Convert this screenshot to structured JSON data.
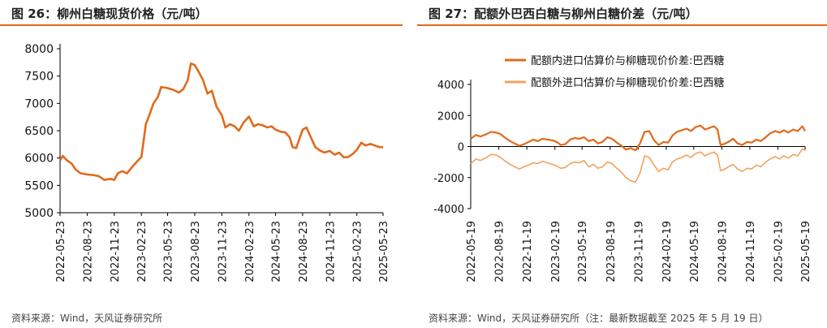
{
  "colors": {
    "accent": "#e06a1b",
    "line_dark": "#e06a1b",
    "line_light": "#f2a25e"
  },
  "left": {
    "title": "图 26：柳州白糖现货价格（元/吨）",
    "source": "资料来源：Wind，天风证券研究所"
  },
  "right": {
    "title": "图 27：配额外巴西白糖与柳州白糖价差（元/吨）",
    "source": "资料来源：Wind，天风证券研究所（注：最新数据截至 2025 年 5 月 19 日）"
  },
  "chart_data": [
    {
      "type": "line",
      "title": "柳州白糖现货价格（元/吨）",
      "x_ticks": [
        "2022-05-23",
        "2022-08-23",
        "2022-11-23",
        "2023-02-23",
        "2023-05-23",
        "2023-08-23",
        "2023-11-23",
        "2024-02-23",
        "2024-05-23",
        "2024-08-23",
        "2024-11-23",
        "2025-02-23",
        "2025-05-23"
      ],
      "ylim": [
        5000,
        8000
      ],
      "y_ticks": [
        5000,
        5500,
        6000,
        6500,
        7000,
        7500,
        8000
      ],
      "grid": false,
      "series": [
        {
          "color": "#e06a1b",
          "points": [
            [
              "2022-05-23",
              5960
            ],
            [
              "2022-06-01",
              6040
            ],
            [
              "2022-06-15",
              5960
            ],
            [
              "2022-07-01",
              5900
            ],
            [
              "2022-07-15",
              5790
            ],
            [
              "2022-08-01",
              5720
            ],
            [
              "2022-08-23",
              5700
            ],
            [
              "2022-09-10",
              5690
            ],
            [
              "2022-10-01",
              5670
            ],
            [
              "2022-10-20",
              5600
            ],
            [
              "2022-11-10",
              5620
            ],
            [
              "2022-11-23",
              5600
            ],
            [
              "2022-12-05",
              5720
            ],
            [
              "2022-12-20",
              5760
            ],
            [
              "2023-01-05",
              5720
            ],
            [
              "2023-01-20",
              5820
            ],
            [
              "2023-02-05",
              5920
            ],
            [
              "2023-02-23",
              6020
            ],
            [
              "2023-03-01",
              6250
            ],
            [
              "2023-03-10",
              6620
            ],
            [
              "2023-03-25",
              6830
            ],
            [
              "2023-04-05",
              7000
            ],
            [
              "2023-04-20",
              7120
            ],
            [
              "2023-05-01",
              7300
            ],
            [
              "2023-05-23",
              7280
            ],
            [
              "2023-06-10",
              7250
            ],
            [
              "2023-06-30",
              7200
            ],
            [
              "2023-07-15",
              7260
            ],
            [
              "2023-07-30",
              7420
            ],
            [
              "2023-08-10",
              7730
            ],
            [
              "2023-08-23",
              7700
            ],
            [
              "2023-09-05",
              7580
            ],
            [
              "2023-09-20",
              7430
            ],
            [
              "2023-10-05",
              7180
            ],
            [
              "2023-10-20",
              7230
            ],
            [
              "2023-11-05",
              6940
            ],
            [
              "2023-11-23",
              6780
            ],
            [
              "2023-12-05",
              6560
            ],
            [
              "2023-12-20",
              6620
            ],
            [
              "2024-01-05",
              6580
            ],
            [
              "2024-01-20",
              6500
            ],
            [
              "2024-02-05",
              6650
            ],
            [
              "2024-02-23",
              6760
            ],
            [
              "2024-03-10",
              6580
            ],
            [
              "2024-03-25",
              6620
            ],
            [
              "2024-04-10",
              6600
            ],
            [
              "2024-04-25",
              6560
            ],
            [
              "2024-05-10",
              6580
            ],
            [
              "2024-05-23",
              6520
            ],
            [
              "2024-06-10",
              6480
            ],
            [
              "2024-06-25",
              6470
            ],
            [
              "2024-07-10",
              6380
            ],
            [
              "2024-07-20",
              6200
            ],
            [
              "2024-08-01",
              6180
            ],
            [
              "2024-08-23",
              6520
            ],
            [
              "2024-09-05",
              6560
            ],
            [
              "2024-09-20",
              6380
            ],
            [
              "2024-10-05",
              6200
            ],
            [
              "2024-10-20",
              6140
            ],
            [
              "2024-11-05",
              6100
            ],
            [
              "2024-11-23",
              6130
            ],
            [
              "2024-12-10",
              6060
            ],
            [
              "2024-12-25",
              6100
            ],
            [
              "2025-01-10",
              6010
            ],
            [
              "2025-01-25",
              6020
            ],
            [
              "2025-02-10",
              6080
            ],
            [
              "2025-02-23",
              6150
            ],
            [
              "2025-03-10",
              6280
            ],
            [
              "2025-03-25",
              6230
            ],
            [
              "2025-04-10",
              6260
            ],
            [
              "2025-04-25",
              6230
            ],
            [
              "2025-05-10",
              6200
            ],
            [
              "2025-05-23",
              6200
            ]
          ]
        }
      ]
    },
    {
      "type": "line",
      "title": "配额外巴西白糖与柳州白糖价差（元/吨）",
      "x_ticks": [
        "2022-05-19",
        "2022-08-19",
        "2022-11-19",
        "2023-02-19",
        "2023-05-19",
        "2023-08-19",
        "2023-11-19",
        "2024-02-19",
        "2024-05-19",
        "2024-08-19",
        "2024-11-19",
        "2025-02-19",
        "2025-05-19"
      ],
      "ylim": [
        -4000,
        4000
      ],
      "y_ticks": [
        -4000,
        -2000,
        0,
        2000,
        4000
      ],
      "legend": "top-center",
      "grid": false,
      "series": [
        {
          "name": "配额内进口估算价与柳糖现价价差:巴西糖",
          "color": "#e06a1b",
          "points": [
            [
              "2022-05-19",
              500
            ],
            [
              "2022-06-05",
              750
            ],
            [
              "2022-06-20",
              650
            ],
            [
              "2022-07-10",
              800
            ],
            [
              "2022-07-25",
              950
            ],
            [
              "2022-08-10",
              900
            ],
            [
              "2022-08-25",
              800
            ],
            [
              "2022-09-10",
              550
            ],
            [
              "2022-09-25",
              350
            ],
            [
              "2022-10-10",
              200
            ],
            [
              "2022-10-25",
              50
            ],
            [
              "2022-11-10",
              150
            ],
            [
              "2022-11-25",
              300
            ],
            [
              "2022-12-10",
              450
            ],
            [
              "2022-12-25",
              350
            ],
            [
              "2023-01-10",
              500
            ],
            [
              "2023-01-25",
              450
            ],
            [
              "2023-02-10",
              400
            ],
            [
              "2023-02-25",
              300
            ],
            [
              "2023-03-10",
              100
            ],
            [
              "2023-03-25",
              150
            ],
            [
              "2023-04-10",
              450
            ],
            [
              "2023-04-25",
              550
            ],
            [
              "2023-05-10",
              500
            ],
            [
              "2023-05-25",
              600
            ],
            [
              "2023-06-10",
              350
            ],
            [
              "2023-06-25",
              450
            ],
            [
              "2023-07-10",
              200
            ],
            [
              "2023-07-25",
              300
            ],
            [
              "2023-08-10",
              600
            ],
            [
              "2023-08-25",
              500
            ],
            [
              "2023-09-10",
              250
            ],
            [
              "2023-09-25",
              50
            ],
            [
              "2023-10-10",
              -200
            ],
            [
              "2023-10-25",
              -100
            ],
            [
              "2023-11-10",
              -250
            ],
            [
              "2023-11-25",
              200
            ],
            [
              "2023-12-10",
              950
            ],
            [
              "2023-12-25",
              1000
            ],
            [
              "2024-01-10",
              400
            ],
            [
              "2024-01-25",
              100
            ],
            [
              "2024-02-10",
              300
            ],
            [
              "2024-02-25",
              250
            ],
            [
              "2024-03-10",
              700
            ],
            [
              "2024-03-25",
              950
            ],
            [
              "2024-04-10",
              1050
            ],
            [
              "2024-04-25",
              1150
            ],
            [
              "2024-05-10",
              1000
            ],
            [
              "2024-05-25",
              1250
            ],
            [
              "2024-06-10",
              1350
            ],
            [
              "2024-06-25",
              1100
            ],
            [
              "2024-07-10",
              1200
            ],
            [
              "2024-07-25",
              1300
            ],
            [
              "2024-08-05",
              1100
            ],
            [
              "2024-08-15",
              100
            ],
            [
              "2024-08-25",
              150
            ],
            [
              "2024-09-10",
              300
            ],
            [
              "2024-09-25",
              500
            ],
            [
              "2024-10-10",
              200
            ],
            [
              "2024-10-25",
              100
            ],
            [
              "2024-11-10",
              300
            ],
            [
              "2024-11-25",
              250
            ],
            [
              "2024-12-10",
              450
            ],
            [
              "2024-12-25",
              350
            ],
            [
              "2025-01-10",
              600
            ],
            [
              "2025-01-25",
              850
            ],
            [
              "2025-02-10",
              1000
            ],
            [
              "2025-02-25",
              900
            ],
            [
              "2025-03-10",
              1050
            ],
            [
              "2025-03-25",
              900
            ],
            [
              "2025-04-10",
              1100
            ],
            [
              "2025-04-25",
              1000
            ],
            [
              "2025-05-10",
              1300
            ],
            [
              "2025-05-19",
              1000
            ]
          ]
        },
        {
          "name": "配额外进口估算价与柳糖现价价差:巴西糖",
          "color": "#f2a25e",
          "points": [
            [
              "2022-05-19",
              -1100
            ],
            [
              "2022-06-05",
              -800
            ],
            [
              "2022-06-20",
              -900
            ],
            [
              "2022-07-10",
              -700
            ],
            [
              "2022-07-25",
              -500
            ],
            [
              "2022-08-10",
              -550
            ],
            [
              "2022-08-25",
              -700
            ],
            [
              "2022-09-10",
              -950
            ],
            [
              "2022-09-25",
              -1150
            ],
            [
              "2022-10-10",
              -1300
            ],
            [
              "2022-10-25",
              -1450
            ],
            [
              "2022-11-10",
              -1300
            ],
            [
              "2022-11-25",
              -1200
            ],
            [
              "2022-12-10",
              -1050
            ],
            [
              "2022-12-25",
              -1100
            ],
            [
              "2023-01-10",
              -950
            ],
            [
              "2023-01-25",
              -1050
            ],
            [
              "2023-02-10",
              -1150
            ],
            [
              "2023-02-25",
              -1250
            ],
            [
              "2023-03-10",
              -1400
            ],
            [
              "2023-03-25",
              -1350
            ],
            [
              "2023-04-10",
              -1100
            ],
            [
              "2023-04-25",
              -1000
            ],
            [
              "2023-05-10",
              -1050
            ],
            [
              "2023-05-25",
              -900
            ],
            [
              "2023-06-10",
              -1300
            ],
            [
              "2023-06-25",
              -1150
            ],
            [
              "2023-07-10",
              -1400
            ],
            [
              "2023-07-25",
              -1300
            ],
            [
              "2023-08-10",
              -1000
            ],
            [
              "2023-08-25",
              -1100
            ],
            [
              "2023-09-10",
              -1400
            ],
            [
              "2023-09-25",
              -1650
            ],
            [
              "2023-10-10",
              -2000
            ],
            [
              "2023-10-25",
              -2200
            ],
            [
              "2023-11-10",
              -2300
            ],
            [
              "2023-11-25",
              -1700
            ],
            [
              "2023-12-10",
              -600
            ],
            [
              "2023-12-25",
              -700
            ],
            [
              "2024-01-10",
              -1200
            ],
            [
              "2024-01-25",
              -1600
            ],
            [
              "2024-02-10",
              -1400
            ],
            [
              "2024-02-25",
              -1500
            ],
            [
              "2024-03-10",
              -1000
            ],
            [
              "2024-03-25",
              -800
            ],
            [
              "2024-04-10",
              -700
            ],
            [
              "2024-04-25",
              -550
            ],
            [
              "2024-05-10",
              -700
            ],
            [
              "2024-05-25",
              -450
            ],
            [
              "2024-06-10",
              -350
            ],
            [
              "2024-06-25",
              -600
            ],
            [
              "2024-07-10",
              -450
            ],
            [
              "2024-07-25",
              -350
            ],
            [
              "2024-08-05",
              -550
            ],
            [
              "2024-08-15",
              -1550
            ],
            [
              "2024-08-25",
              -1500
            ],
            [
              "2024-09-10",
              -1300
            ],
            [
              "2024-09-25",
              -1150
            ],
            [
              "2024-10-10",
              -1450
            ],
            [
              "2024-10-25",
              -1600
            ],
            [
              "2024-11-10",
              -1400
            ],
            [
              "2024-11-25",
              -1450
            ],
            [
              "2024-12-10",
              -1200
            ],
            [
              "2024-12-25",
              -1300
            ],
            [
              "2025-01-10",
              -1000
            ],
            [
              "2025-01-25",
              -800
            ],
            [
              "2025-02-10",
              -650
            ],
            [
              "2025-02-25",
              -800
            ],
            [
              "2025-03-10",
              -600
            ],
            [
              "2025-03-25",
              -750
            ],
            [
              "2025-04-10",
              -500
            ],
            [
              "2025-04-25",
              -600
            ],
            [
              "2025-05-10",
              -150
            ],
            [
              "2025-05-19",
              -250
            ]
          ]
        }
      ]
    }
  ]
}
